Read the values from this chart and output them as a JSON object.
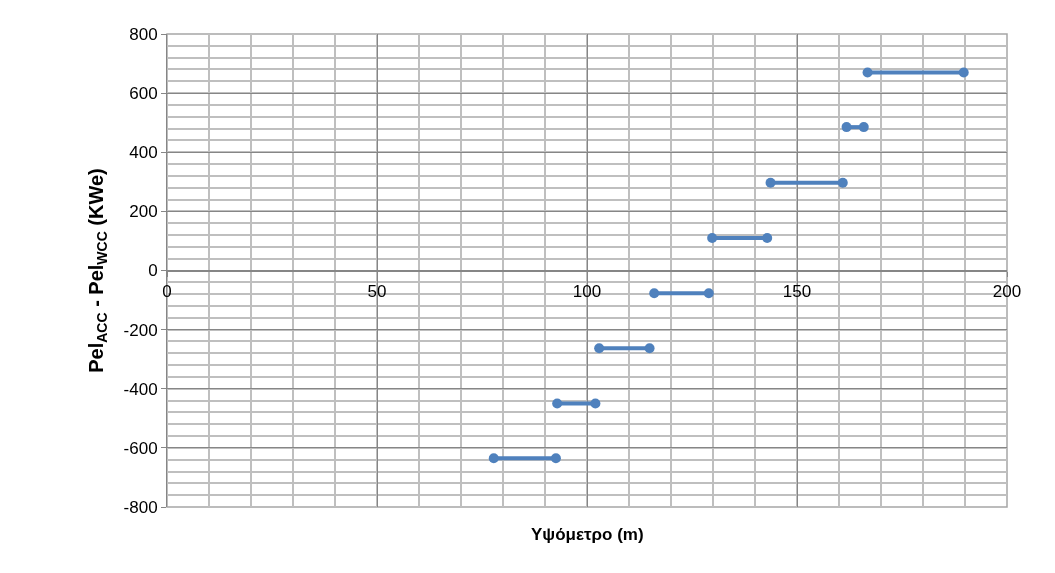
{
  "chart_data": {
    "type": "line",
    "xlabel": "Υψόμετρο (m)",
    "ylabel": "Pel$_{ACC}$ - Pel$_{WCC}$ (KWe)",
    "series": [
      {
        "color": "#4f81bd",
        "x": [
          77.8,
          92.6
        ],
        "values": [
          -635,
          -635
        ]
      },
      {
        "color": "#4f81bd",
        "x": [
          92.9,
          102
        ],
        "values": [
          -450,
          -450
        ]
      },
      {
        "color": "#4f81bd",
        "x": [
          102.9,
          114.9
        ],
        "values": [
          -263,
          -263
        ]
      },
      {
        "color": "#4f81bd",
        "x": [
          116,
          129
        ],
        "values": [
          -77,
          -77
        ]
      },
      {
        "color": "#4f81bd",
        "x": [
          129.8,
          142.9
        ],
        "values": [
          110,
          110
        ]
      },
      {
        "color": "#4f81bd",
        "x": [
          143.7,
          160.9
        ],
        "values": [
          297,
          297
        ]
      },
      {
        "color": "#4f81bd",
        "x": [
          161.8,
          165.9
        ],
        "values": [
          485,
          485
        ]
      },
      {
        "color": "#4f81bd",
        "x": [
          166.8,
          189.7
        ],
        "values": [
          670,
          670
        ]
      }
    ],
    "xlim": [
      0,
      200
    ],
    "xticks": [
      0,
      50,
      100,
      150,
      200
    ],
    "ylim": [
      -800,
      800
    ],
    "yticks": [
      -800,
      -600,
      -400,
      -200,
      0,
      200,
      400,
      600,
      800
    ],
    "grid": true,
    "marker": "circle",
    "line_style": "solid"
  }
}
